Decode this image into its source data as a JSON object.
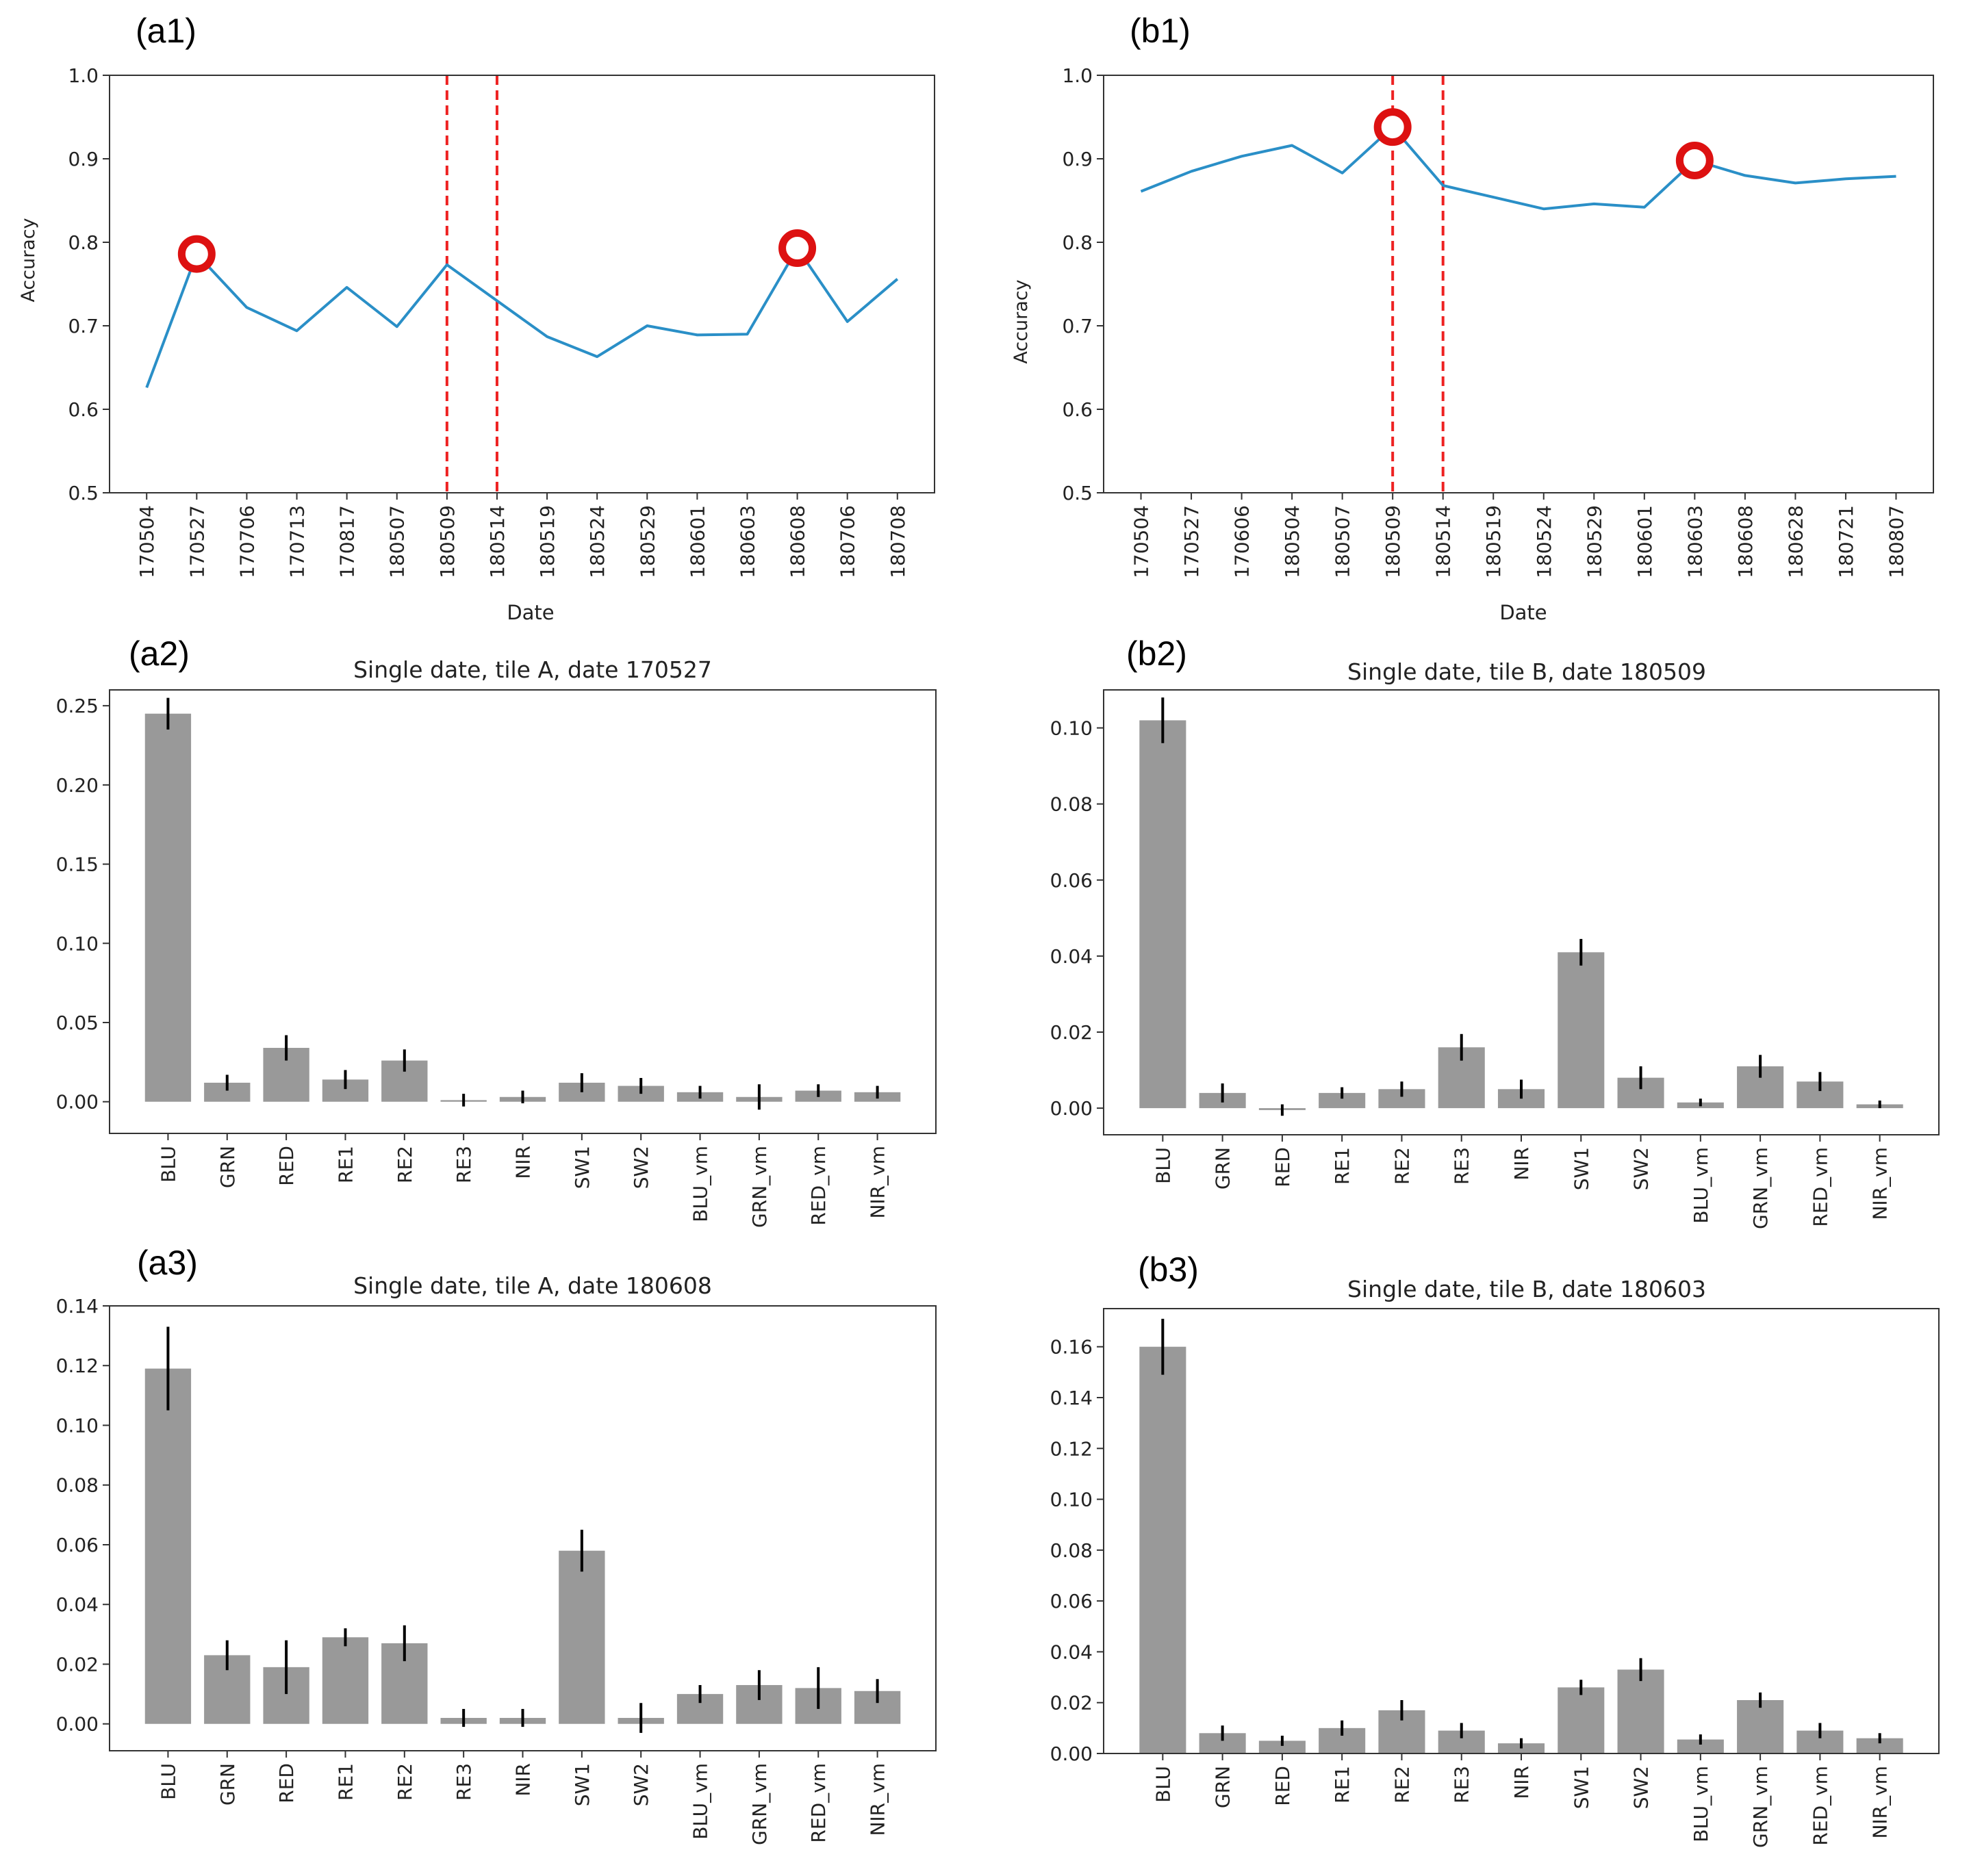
{
  "colors": {
    "line": "#2a8fc7",
    "bar": "#999999",
    "error": "#000000",
    "vline": "#ee2222",
    "circle": "#dd1111",
    "frame": "#333333"
  },
  "chart_data": [
    {
      "id": "a1",
      "panel_label": "(a1)",
      "type": "line",
      "title": "",
      "xlabel": "Date",
      "ylabel": "Accuracy",
      "ylim": [
        0.5,
        1.0
      ],
      "yticks": [
        0.5,
        0.6,
        0.7,
        0.8,
        0.9,
        1.0
      ],
      "ytick_labels": [
        "0.5",
        "0.6",
        "0.7",
        "0.8",
        "0.9",
        "1.0"
      ],
      "categories": [
        "170504",
        "170527",
        "170706",
        "170713",
        "170817",
        "180507",
        "180509",
        "180514",
        "180519",
        "180524",
        "180529",
        "180601",
        "180603",
        "180608",
        "180706",
        "180708"
      ],
      "values": [
        0.626,
        0.786,
        0.722,
        0.694,
        0.746,
        0.699,
        0.773,
        0.73,
        0.687,
        0.663,
        0.7,
        0.689,
        0.69,
        0.793,
        0.705,
        0.756
      ],
      "vlines": [
        "180509",
        "180514"
      ],
      "highlighted": [
        "170527",
        "180608"
      ]
    },
    {
      "id": "b1",
      "panel_label": "(b1)",
      "type": "line",
      "title": "",
      "xlabel": "Date",
      "ylabel": "Accuracy",
      "ylim": [
        0.5,
        1.0
      ],
      "yticks": [
        0.5,
        0.6,
        0.7,
        0.8,
        0.9,
        1.0
      ],
      "ytick_labels": [
        "0.5",
        "0.6",
        "0.7",
        "0.8",
        "0.9",
        "1.0"
      ],
      "categories": [
        "170504",
        "170527",
        "170606",
        "180504",
        "180507",
        "180509",
        "180514",
        "180519",
        "180524",
        "180529",
        "180601",
        "180603",
        "180608",
        "180628",
        "180721",
        "180807"
      ],
      "values": [
        0.861,
        0.885,
        0.903,
        0.916,
        0.883,
        0.938,
        0.868,
        0.854,
        0.84,
        0.846,
        0.842,
        0.898,
        0.88,
        0.871,
        0.876,
        0.879
      ],
      "vlines": [
        "180509",
        "180514"
      ],
      "highlighted": [
        "180509",
        "180603"
      ]
    },
    {
      "id": "a2",
      "panel_label": "(a2)",
      "type": "bar",
      "title": "Single date, tile A, date 170527",
      "xlabel": "",
      "ylabel": "",
      "ylim": [
        -0.02,
        0.26
      ],
      "yticks": [
        0,
        0.05,
        0.1,
        0.15,
        0.2,
        0.25
      ],
      "ytick_labels": [
        "0.00",
        "0.05",
        "0.10",
        "0.15",
        "0.20",
        "0.25"
      ],
      "categories": [
        "BLU",
        "GRN",
        "RED",
        "RE1",
        "RE2",
        "RE3",
        "NIR",
        "SW1",
        "SW2",
        "BLU_vm",
        "GRN_vm",
        "RED_vm",
        "NIR_vm"
      ],
      "values": [
        0.245,
        0.012,
        0.034,
        0.014,
        0.026,
        0.001,
        0.003,
        0.012,
        0.01,
        0.006,
        0.003,
        0.007,
        0.006
      ],
      "errors": [
        0.01,
        0.005,
        0.008,
        0.006,
        0.007,
        0.004,
        0.004,
        0.006,
        0.005,
        0.004,
        0.008,
        0.004,
        0.004
      ]
    },
    {
      "id": "b2",
      "panel_label": "(b2)",
      "type": "bar",
      "title": "Single date, tile B, date 180509",
      "xlabel": "",
      "ylabel": "",
      "ylim": [
        -0.007,
        0.11
      ],
      "yticks": [
        0,
        0.02,
        0.04,
        0.06,
        0.08,
        0.1
      ],
      "ytick_labels": [
        "0.00",
        "0.02",
        "0.04",
        "0.06",
        "0.08",
        "0.10"
      ],
      "categories": [
        "BLU",
        "GRN",
        "RED",
        "RE1",
        "RE2",
        "RE3",
        "NIR",
        "SW1",
        "SW2",
        "BLU_vm",
        "GRN_vm",
        "RED_vm",
        "NIR_vm"
      ],
      "values": [
        0.102,
        0.004,
        -0.0005,
        0.004,
        0.005,
        0.016,
        0.005,
        0.041,
        0.008,
        0.0015,
        0.011,
        0.007,
        0.001
      ],
      "errors": [
        0.006,
        0.0025,
        0.0015,
        0.0015,
        0.002,
        0.0035,
        0.0025,
        0.0035,
        0.003,
        0.001,
        0.003,
        0.0025,
        0.001
      ]
    },
    {
      "id": "a3",
      "panel_label": "(a3)",
      "type": "bar",
      "title": "Single date, tile A, date 180608",
      "xlabel": "",
      "ylabel": "",
      "ylim": [
        -0.009,
        0.14
      ],
      "yticks": [
        0,
        0.02,
        0.04,
        0.06,
        0.08,
        0.1,
        0.12,
        0.14
      ],
      "ytick_labels": [
        "0.00",
        "0.02",
        "0.04",
        "0.06",
        "0.08",
        "0.10",
        "0.12",
        "0.14"
      ],
      "categories": [
        "BLU",
        "GRN",
        "RED",
        "RE1",
        "RE2",
        "RE3",
        "NIR",
        "SW1",
        "SW2",
        "BLU_vm",
        "GRN_vm",
        "RED_vm",
        "NIR_vm"
      ],
      "values": [
        0.119,
        0.023,
        0.019,
        0.029,
        0.027,
        0.002,
        0.002,
        0.058,
        0.002,
        0.01,
        0.013,
        0.012,
        0.011
      ],
      "errors": [
        0.014,
        0.005,
        0.009,
        0.003,
        0.006,
        0.003,
        0.003,
        0.007,
        0.005,
        0.003,
        0.005,
        0.007,
        0.004
      ]
    },
    {
      "id": "b3",
      "panel_label": "(b3)",
      "type": "bar",
      "title": "Single date, tile B, date 180603",
      "xlabel": "",
      "ylabel": "",
      "ylim": [
        0,
        0.175
      ],
      "yticks": [
        0,
        0.02,
        0.04,
        0.06,
        0.08,
        0.1,
        0.12,
        0.14,
        0.16
      ],
      "ytick_labels": [
        "0.00",
        "0.02",
        "0.04",
        "0.06",
        "0.08",
        "0.10",
        "0.12",
        "0.14",
        "0.16"
      ],
      "categories": [
        "BLU",
        "GRN",
        "RED",
        "RE1",
        "RE2",
        "RE3",
        "NIR",
        "SW1",
        "SW2",
        "BLU_vm",
        "GRN_vm",
        "RED_vm",
        "NIR_vm"
      ],
      "values": [
        0.16,
        0.008,
        0.005,
        0.01,
        0.017,
        0.009,
        0.004,
        0.026,
        0.033,
        0.0055,
        0.021,
        0.009,
        0.006
      ],
      "errors": [
        0.011,
        0.003,
        0.002,
        0.003,
        0.004,
        0.003,
        0.002,
        0.003,
        0.0045,
        0.002,
        0.003,
        0.003,
        0.002
      ]
    }
  ]
}
